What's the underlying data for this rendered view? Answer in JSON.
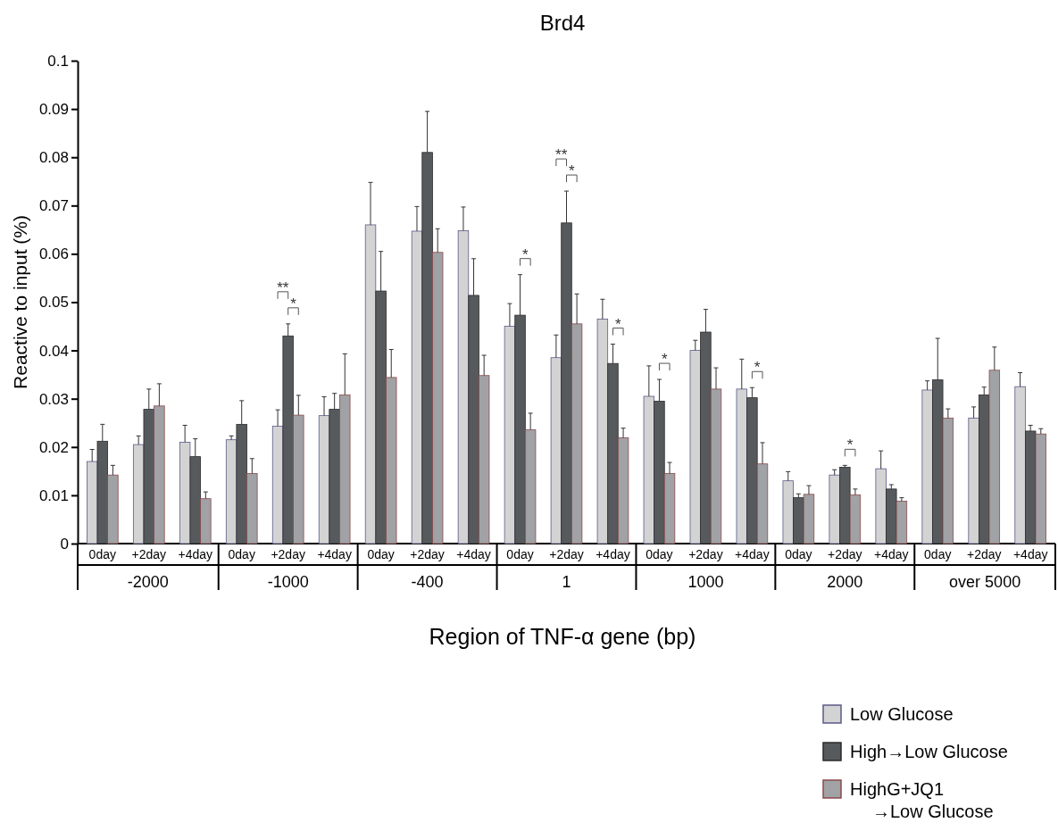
{
  "chart_data": {
    "type": "bar",
    "title": "Brd4",
    "xlabel": "Region of TNF-α gene (bp)",
    "ylabel": "Reactive to input (%)",
    "categories": [
      "0day",
      "+2day",
      "+4day",
      "0day",
      "+2day",
      "+4day",
      "0day",
      "+2day",
      "+4day",
      "0day",
      "+2day",
      "+4day",
      "0day",
      "+2day",
      "+4day",
      "0day",
      "+2day",
      "+4day",
      "0day",
      "+2day",
      "+4day"
    ],
    "series": [
      {
        "name": "Low Glucose",
        "color": "#d3d3d3",
        "values": [
          0.017,
          0.0205,
          0.021,
          0.0215,
          0.0243,
          0.0265,
          0.066,
          0.0647,
          0.0648,
          0.045,
          0.0385,
          0.0465,
          0.0305,
          0.04,
          0.032,
          0.013,
          0.0142,
          0.0155,
          0.0318,
          0.026,
          0.0325
        ],
        "errors": [
          0.0025,
          0.0018,
          0.0035,
          0.0008,
          0.0034,
          0.0039,
          0.0088,
          0.0051,
          0.0049,
          0.0047,
          0.0047,
          0.0041,
          0.0063,
          0.0021,
          0.0062,
          0.0019,
          0.0011,
          0.0037,
          0.0019,
          0.0023,
          0.0029
        ]
      },
      {
        "name": "High→Low Glucose",
        "color": "#575a5d",
        "values": [
          0.0212,
          0.0278,
          0.018,
          0.0247,
          0.043,
          0.0278,
          0.0523,
          0.081,
          0.0514,
          0.0473,
          0.0664,
          0.0373,
          0.0295,
          0.0438,
          0.0302,
          0.0095,
          0.0158,
          0.0113,
          0.0339,
          0.0308,
          0.0233
        ],
        "errors": [
          0.0035,
          0.0042,
          0.0037,
          0.0049,
          0.0025,
          0.0033,
          0.0082,
          0.0085,
          0.0076,
          0.0084,
          0.0066,
          0.004,
          0.0045,
          0.0047,
          0.0021,
          0.0008,
          0.0004,
          0.0009,
          0.0086,
          0.0016,
          0.0012
        ]
      },
      {
        "name": "HighG+JQ1\n→Low Glucose",
        "color": "#a0a2a5",
        "values": [
          0.0142,
          0.0285,
          0.0093,
          0.0145,
          0.0266,
          0.0308,
          0.0344,
          0.0603,
          0.0348,
          0.0236,
          0.0455,
          0.0219,
          0.0145,
          0.032,
          0.0165,
          0.0102,
          0.0101,
          0.0088,
          0.026,
          0.0359,
          0.0227
        ],
        "errors": [
          0.002,
          0.0046,
          0.0014,
          0.0031,
          0.0041,
          0.0085,
          0.0058,
          0.0049,
          0.0042,
          0.0034,
          0.0062,
          0.002,
          0.0023,
          0.0044,
          0.0044,
          0.0018,
          0.0012,
          0.0007,
          0.0019,
          0.0048,
          0.0011
        ]
      }
    ],
    "ylim": [
      0,
      0.1
    ],
    "yticks": [
      0,
      0.01,
      0.02,
      0.03,
      0.04,
      0.05,
      0.06,
      0.07,
      0.08,
      0.09,
      0.1
    ],
    "legend": "bottom right",
    "annotations": [
      "-2000",
      "-1000",
      "-400",
      "1",
      "1000",
      "2000",
      "over 5000",
      "**",
      "*",
      "*",
      "**",
      "*",
      "*",
      "*",
      "*",
      "*"
    ]
  }
}
